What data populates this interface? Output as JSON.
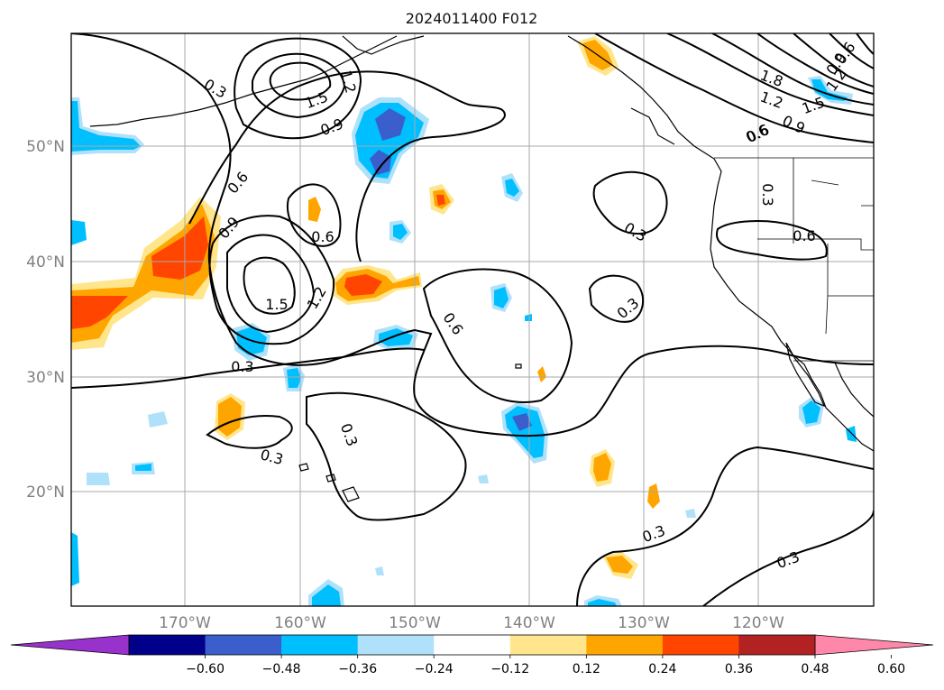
{
  "title": "2024011400 F012",
  "map": {
    "lat_labels": [
      "50°N",
      "40°N",
      "30°N",
      "20°N"
    ],
    "lon_labels": [
      "170°W",
      "160°W",
      "150°W",
      "140°W",
      "130°W",
      "120°W"
    ],
    "gridlines": true,
    "coastline_color": "#000000",
    "grid_color": "#a9a9a9"
  },
  "colorbar": {
    "orientation": "horizontal",
    "extend": "both",
    "tick_labels": [
      "−0.60",
      "−0.48",
      "−0.36",
      "−0.24",
      "−0.12",
      "0.12",
      "0.24",
      "0.36",
      "0.48",
      "0.60"
    ],
    "colors": [
      "#9932cc",
      "#00008b",
      "#3a5fcd",
      "#00bfff",
      "#afe1fa",
      "#ffffff",
      "#ffe68c",
      "#ffa500",
      "#ff4500",
      "#b22222",
      "#ff88aa"
    ]
  },
  "contour_labels": [
    "0.3",
    "0.6",
    "0.9",
    "1.2",
    "1.5",
    "1.8"
  ],
  "contour_instances": [
    "0.3",
    "0.9",
    "1.5",
    "1.2",
    "0.6",
    "0.9",
    "0.6",
    "1.5",
    "1.2",
    "0.6",
    "0.3",
    "0.3",
    "0.3",
    "0.6",
    "0.3",
    "0.3",
    "0.6",
    "0.3",
    "0.6",
    "0.9",
    "1.2",
    "1.5",
    "1.8",
    "0.6",
    "0.9",
    "1.2",
    "0.3",
    "0.3"
  ]
}
